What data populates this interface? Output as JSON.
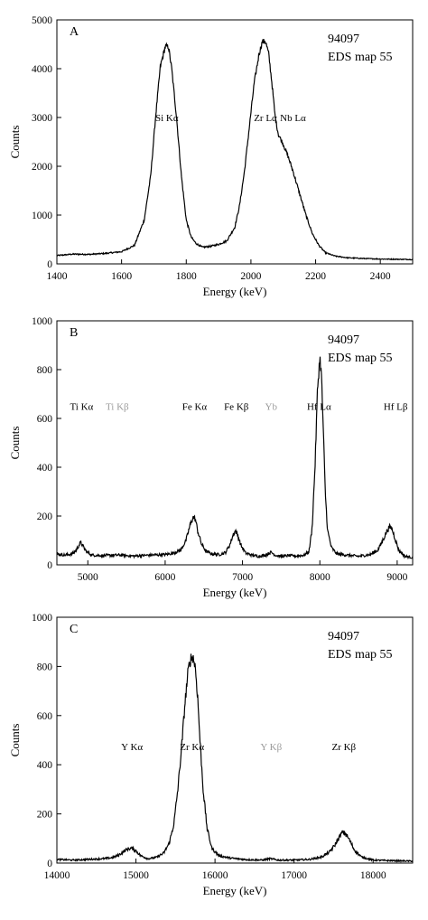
{
  "chart_data": [
    {
      "type": "line",
      "panel_label": "A",
      "annotation": [
        "94097",
        "EDS map 55"
      ],
      "xlabel": "Energy (keV)",
      "ylabel": "Counts",
      "xlim": [
        1400,
        2500
      ],
      "ylim": [
        0,
        5000
      ],
      "xticks": [
        1400,
        1600,
        1800,
        2000,
        2200,
        2400
      ],
      "yticks": [
        0,
        1000,
        2000,
        3000,
        4000,
        5000
      ],
      "peaks": [
        {
          "label": "Si Kα",
          "x": 1740,
          "y": 3000,
          "color": "#000000"
        },
        {
          "label": "Zr Lα",
          "x": 2045,
          "y": 3000,
          "color": "#000000"
        },
        {
          "label": "Nb Lα",
          "x": 2130,
          "y": 3000,
          "color": "#000000"
        }
      ],
      "series": [
        {
          "x": [
            1400,
            1450,
            1500,
            1550,
            1600,
            1640,
            1670,
            1690,
            1705,
            1720,
            1735,
            1745,
            1755,
            1770,
            1785,
            1800,
            1815,
            1830,
            1850,
            1875,
            1900,
            1925,
            1950,
            1965,
            1980,
            1995,
            2010,
            2025,
            2035,
            2045,
            2055,
            2065,
            2075,
            2085,
            2100,
            2115,
            2130,
            2150,
            2170,
            2190,
            2210,
            2230,
            2260,
            2300,
            2350,
            2400,
            2450,
            2500
          ],
          "y": [
            170,
            200,
            195,
            215,
            250,
            380,
            900,
            1800,
            3000,
            4050,
            4450,
            4450,
            4000,
            3000,
            1800,
            900,
            550,
            420,
            340,
            360,
            400,
            470,
            750,
            1200,
            1900,
            2800,
            3700,
            4300,
            4550,
            4560,
            4300,
            3700,
            3000,
            2650,
            2450,
            2200,
            1900,
            1450,
            1000,
            620,
            380,
            230,
            160,
            125,
            110,
            100,
            95,
            90
          ]
        }
      ]
    },
    {
      "type": "line",
      "panel_label": "B",
      "annotation": [
        "94097",
        "EDS map 55"
      ],
      "xlabel": "Energy (keV)",
      "ylabel": "Counts",
      "xlim": [
        4600,
        9200
      ],
      "ylim": [
        0,
        1000
      ],
      "xticks": [
        5000,
        6000,
        7000,
        8000,
        9000
      ],
      "yticks": [
        0,
        200,
        400,
        600,
        800,
        1000
      ],
      "peaks": [
        {
          "label": "Ti Kα",
          "x": 4920,
          "y": 650,
          "color": "#000000"
        },
        {
          "label": "Ti Kβ",
          "x": 5380,
          "y": 650,
          "color": "#9a9a9a"
        },
        {
          "label": "Fe Kα",
          "x": 6380,
          "y": 650,
          "color": "#000000"
        },
        {
          "label": "Fe Kβ",
          "x": 6920,
          "y": 650,
          "color": "#000000"
        },
        {
          "label": "Yb",
          "x": 7370,
          "y": 650,
          "color": "#9a9a9a"
        },
        {
          "label": "Hf Lα",
          "x": 7990,
          "y": 650,
          "color": "#000000"
        },
        {
          "label": "Hf Lβ",
          "x": 8980,
          "y": 650,
          "color": "#000000"
        }
      ],
      "series": [
        {
          "x": [
            4600,
            4700,
            4800,
            4850,
            4880,
            4910,
            4940,
            4980,
            5050,
            5200,
            5400,
            5600,
            5800,
            6000,
            6100,
            6200,
            6270,
            6320,
            6360,
            6390,
            6420,
            6470,
            6530,
            6600,
            6700,
            6780,
            6840,
            6880,
            6910,
            6940,
            6980,
            7040,
            7120,
            7200,
            7300,
            7370,
            7420,
            7500,
            7600,
            7700,
            7800,
            7860,
            7900,
            7940,
            7970,
            8000,
            8020,
            8040,
            8070,
            8100,
            8150,
            8220,
            8350,
            8500,
            8650,
            8750,
            8820,
            8870,
            8900,
            8930,
            8970,
            9020,
            9100,
            9200
          ],
          "y": [
            45,
            40,
            45,
            60,
            78,
            92,
            75,
            55,
            40,
            38,
            40,
            36,
            40,
            42,
            48,
            60,
            100,
            160,
            195,
            188,
            140,
            85,
            55,
            45,
            42,
            50,
            85,
            125,
            140,
            120,
            80,
            48,
            40,
            35,
            40,
            52,
            40,
            35,
            38,
            36,
            40,
            55,
            150,
            420,
            720,
            850,
            780,
            600,
            300,
            140,
            70,
            45,
            40,
            35,
            42,
            60,
            105,
            140,
            155,
            150,
            110,
            60,
            35,
            30
          ]
        }
      ]
    },
    {
      "type": "line",
      "panel_label": "C",
      "annotation": [
        "94097",
        "EDS map 55"
      ],
      "xlabel": "Energy (keV)",
      "ylabel": "Counts",
      "xlim": [
        14000,
        18500
      ],
      "ylim": [
        0,
        1000
      ],
      "xticks": [
        14000,
        15000,
        16000,
        17000,
        18000
      ],
      "yticks": [
        0,
        200,
        400,
        600,
        800,
        1000
      ],
      "peaks": [
        {
          "label": "Y Kα",
          "x": 14950,
          "y": 475,
          "color": "#000000"
        },
        {
          "label": "Zr Kα",
          "x": 15710,
          "y": 475,
          "color": "#000000"
        },
        {
          "label": "Y Kβ",
          "x": 16710,
          "y": 475,
          "color": "#9a9a9a"
        },
        {
          "label": "Zr Kβ",
          "x": 17630,
          "y": 475,
          "color": "#000000"
        }
      ],
      "series": [
        {
          "x": [
            14000,
            14200,
            14400,
            14600,
            14700,
            14780,
            14850,
            14900,
            14950,
            15000,
            15060,
            15150,
            15250,
            15350,
            15420,
            15480,
            15530,
            15580,
            15620,
            15660,
            15690,
            15720,
            15750,
            15780,
            15810,
            15850,
            15900,
            15960,
            16050,
            16200,
            16400,
            16600,
            16700,
            16800,
            17000,
            17200,
            17350,
            17450,
            17520,
            17570,
            17610,
            17650,
            17700,
            17760,
            17850,
            18000,
            18200,
            18500
          ],
          "y": [
            15,
            12,
            15,
            18,
            22,
            32,
            48,
            58,
            60,
            50,
            30,
            18,
            22,
            40,
            80,
            160,
            300,
            480,
            650,
            780,
            830,
            840,
            800,
            680,
            500,
            300,
            140,
            60,
            30,
            20,
            14,
            12,
            18,
            12,
            12,
            15,
            25,
            45,
            75,
            105,
            125,
            120,
            95,
            55,
            25,
            12,
            10,
            8
          ]
        }
      ]
    }
  ]
}
